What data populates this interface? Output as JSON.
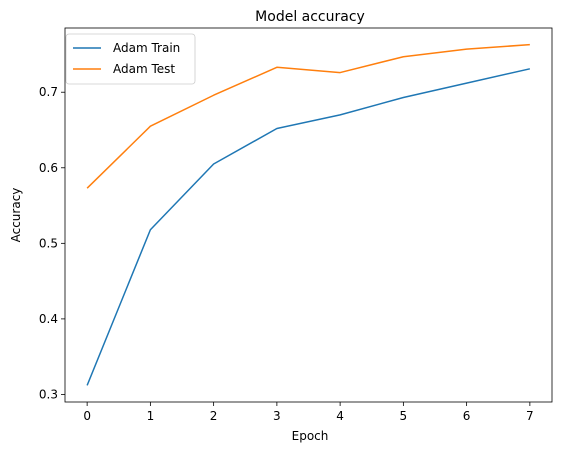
{
  "chart_data": {
    "type": "line",
    "title": "Model accuracy",
    "xlabel": "Epoch",
    "ylabel": "Accuracy",
    "x": [
      0,
      1,
      2,
      3,
      4,
      5,
      6,
      7
    ],
    "xticks": [
      0,
      1,
      2,
      3,
      4,
      5,
      6,
      7
    ],
    "yticks": [
      0.3,
      0.4,
      0.5,
      0.6,
      0.7
    ],
    "xlim": [
      -0.35,
      7.35
    ],
    "ylim": [
      0.29,
      0.785
    ],
    "grid": false,
    "legend_position": "top-left",
    "series": [
      {
        "name": "Adam Train",
        "color": "#1f77b4",
        "values": [
          0.312,
          0.518,
          0.605,
          0.652,
          0.67,
          0.693,
          0.712,
          0.731
        ]
      },
      {
        "name": "Adam Test",
        "color": "#ff7f0e",
        "values": [
          0.573,
          0.655,
          0.696,
          0.733,
          0.726,
          0.747,
          0.757,
          0.763
        ]
      }
    ]
  }
}
